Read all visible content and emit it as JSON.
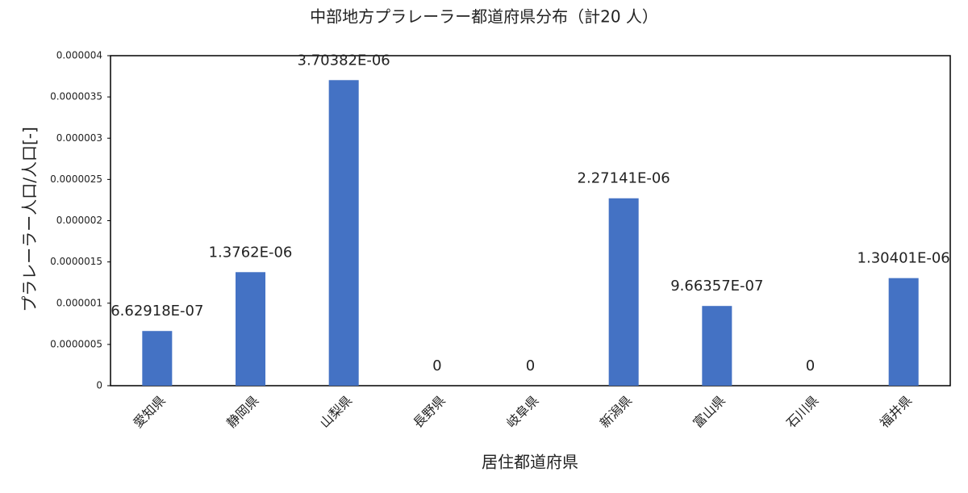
{
  "chart_data": {
    "type": "bar",
    "title": "中部地方プラレーラー都道府県分布（計20 人）",
    "x_label": "居住都道府県",
    "y_label": "プラレーラー人口/人口[-]",
    "categories": [
      "愛知県",
      "静岡県",
      "山梨県",
      "長野県",
      "岐阜県",
      "新潟県",
      "富山県",
      "石川県",
      "福井県"
    ],
    "values": [
      6.62918e-07,
      1.3762e-06,
      3.70382e-06,
      0,
      0,
      2.27141e-06,
      9.66357e-07,
      0,
      1.30401e-06
    ],
    "value_labels": [
      "6.62918E-07",
      "1.3762E-06",
      "3.70382E-06",
      "0",
      "0",
      "2.27141E-06",
      "9.66357E-07",
      "0",
      "1.30401E-06"
    ],
    "color": "#4472c4",
    "ylim": [
      0,
      4e-06
    ],
    "yticks": [
      0,
      {
        "value": 5e-07,
        "label": "0.0000005"
      },
      {
        "value": 1e-06,
        "label": "0.000001"
      },
      {
        "value": 1.5e-06,
        "label": "0.0000015"
      },
      {
        "value": 2e-06,
        "label": "0.000002"
      },
      {
        "value": 2.5e-06,
        "label": "0.0000025"
      },
      {
        "value": 3e-06,
        "label": "0.000003"
      },
      {
        "value": 3.5e-06,
        "label": "0.0000035"
      },
      {
        "value": 4e-06,
        "label": "0.000004"
      }
    ],
    "grid": false
  }
}
